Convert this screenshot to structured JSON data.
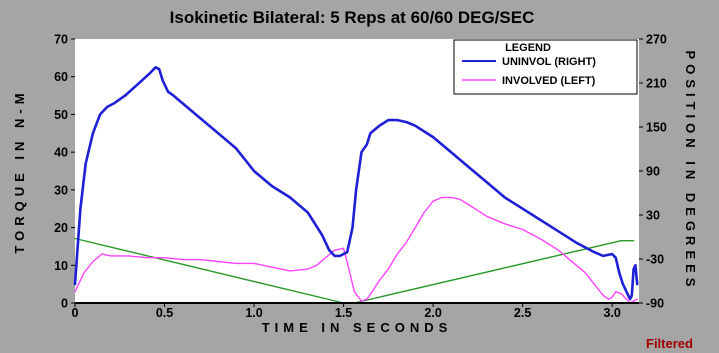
{
  "chart_data": {
    "type": "line",
    "title": "Isokinetic Bilateral: 5 Reps  at 60/60 DEG/SEC",
    "xlabel": "TIME IN SECONDS",
    "ylabel": "TORQUE IN N-M",
    "y2label": "POSITION IN DEGREES",
    "xlim": [
      0,
      3.15
    ],
    "ylim": [
      0,
      70
    ],
    "y2lim": [
      -90,
      270
    ],
    "xticks": [
      "0",
      "0.5",
      "1.0",
      "1.5",
      "2.0",
      "2.5",
      "3.0"
    ],
    "yticks": [
      "0",
      "10",
      "20",
      "30",
      "40",
      "50",
      "60",
      "70"
    ],
    "y2ticks": [
      "-90",
      "-30",
      "30",
      "90",
      "150",
      "210",
      "270"
    ],
    "grid": false,
    "legend_title": "LEGEND",
    "legend_position": "top-right",
    "footer_note": "Filtered",
    "colors": {
      "background": "#a5a5a5",
      "plot": "#ffffff",
      "right": "#1f1fd6",
      "left": "#ff44ff",
      "position": "#2a9a2a",
      "footer": "#a00000"
    },
    "series": [
      {
        "name": "UNINVOL (RIGHT)",
        "color": "#1f1fd6",
        "axis": "left",
        "x": [
          0.0,
          0.03,
          0.06,
          0.1,
          0.14,
          0.18,
          0.22,
          0.28,
          0.35,
          0.42,
          0.45,
          0.47,
          0.49,
          0.52,
          0.55,
          0.6,
          0.7,
          0.8,
          0.9,
          1.0,
          1.1,
          1.2,
          1.3,
          1.38,
          1.42,
          1.45,
          1.48,
          1.5,
          1.52,
          1.55,
          1.57,
          1.6,
          1.63,
          1.65,
          1.7,
          1.75,
          1.8,
          1.85,
          1.9,
          2.0,
          2.1,
          2.2,
          2.3,
          2.4,
          2.5,
          2.6,
          2.7,
          2.8,
          2.9,
          2.95,
          3.0,
          3.02,
          3.04,
          3.06,
          3.08,
          3.1,
          3.11,
          3.12,
          3.13,
          3.14
        ],
        "values": [
          5,
          25,
          37,
          45,
          50,
          52,
          53,
          55,
          58,
          61,
          62.5,
          62,
          59,
          56,
          55,
          53,
          49,
          45,
          41,
          35,
          31,
          28,
          24,
          18,
          14,
          12.5,
          12.5,
          13,
          13.5,
          20,
          30,
          40,
          42,
          45,
          47,
          48.5,
          48.5,
          48,
          47,
          44,
          40,
          36,
          32,
          28,
          25,
          22,
          19,
          16,
          13.5,
          12.5,
          13,
          12,
          8,
          5,
          3,
          1,
          2,
          9,
          10,
          5
        ]
      },
      {
        "name": "INVOLVED (LEFT)",
        "color": "#ff44ff",
        "axis": "left",
        "x": [
          0.0,
          0.05,
          0.1,
          0.15,
          0.2,
          0.3,
          0.4,
          0.5,
          0.6,
          0.7,
          0.8,
          0.9,
          1.0,
          1.1,
          1.2,
          1.3,
          1.35,
          1.4,
          1.45,
          1.5,
          1.53,
          1.56,
          1.6,
          1.63,
          1.66,
          1.7,
          1.75,
          1.8,
          1.85,
          1.9,
          1.95,
          2.0,
          2.05,
          2.1,
          2.15,
          2.2,
          2.3,
          2.4,
          2.5,
          2.6,
          2.7,
          2.8,
          2.85,
          2.9,
          2.95,
          2.98,
          3.0,
          3.02,
          3.05,
          3.08,
          3.1,
          3.12,
          3.14
        ],
        "values": [
          3,
          8,
          11,
          13,
          12.5,
          12.5,
          12,
          12,
          11.5,
          11.5,
          11,
          10.5,
          10.5,
          9.5,
          8.5,
          9,
          10,
          12,
          14,
          14.5,
          9,
          3,
          0.5,
          1,
          3,
          6,
          9,
          13,
          16,
          20,
          24,
          27,
          28,
          28,
          27.5,
          26,
          23,
          21,
          19.5,
          17,
          14,
          10,
          8,
          5,
          2,
          1,
          1.5,
          3,
          2.5,
          1,
          0,
          0.5,
          1
        ]
      },
      {
        "name": "Position",
        "color": "#2a9a2a",
        "axis": "right",
        "x": [
          0.0,
          1.5,
          1.56,
          3.05,
          3.12
        ],
        "values": [
          -2,
          -90,
          -90,
          -5,
          -5
        ]
      }
    ]
  }
}
